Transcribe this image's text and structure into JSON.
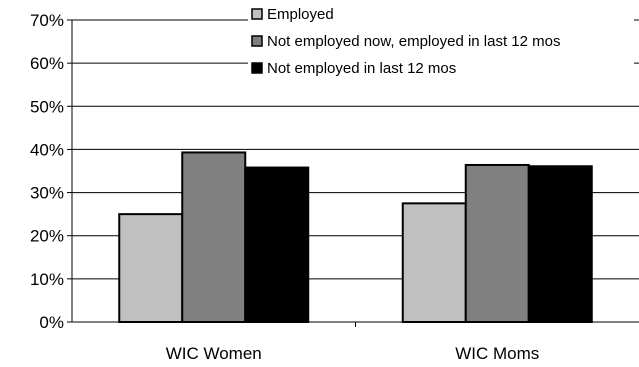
{
  "chart_data": {
    "type": "bar",
    "title": "",
    "xlabel": "",
    "ylabel": "",
    "ylim": [
      0,
      70
    ],
    "yticks": [
      "0%",
      "10%",
      "20%",
      "30%",
      "40%",
      "50%",
      "60%",
      "70%"
    ],
    "ytick_values": [
      0,
      10,
      20,
      30,
      40,
      50,
      60,
      70
    ],
    "grid": true,
    "legend_position": "top-right",
    "categories": [
      "WIC Women",
      "WIC Moms"
    ],
    "series": [
      {
        "name": "Employed",
        "values": [
          25,
          27.5
        ],
        "color": "#c0c0c0"
      },
      {
        "name": "Not employed now, employed in last 12 mos",
        "values": [
          39.3,
          36.4
        ],
        "color": "#808080"
      },
      {
        "name": "Not employed in last 12 mos",
        "values": [
          35.8,
          36.1
        ],
        "color": "#000000"
      }
    ]
  }
}
